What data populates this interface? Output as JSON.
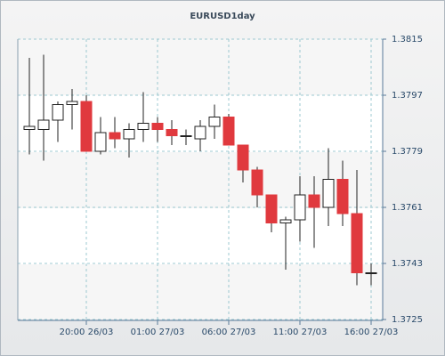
{
  "chart_data": {
    "type": "candlestick",
    "title": "EURUSD1day",
    "categories": [
      null,
      null,
      null,
      null,
      "20:00 26/03",
      null,
      null,
      null,
      null,
      "01:00 27/03",
      null,
      null,
      null,
      null,
      "06:00 27/03",
      null,
      null,
      null,
      null,
      "11:00 27/03",
      null,
      null,
      null,
      null,
      "16:00 27/03"
    ],
    "open": [
      1.3786,
      1.3786,
      1.3789,
      1.3794,
      1.3795,
      1.3779,
      1.3785,
      1.3783,
      1.3786,
      1.3788,
      1.3786,
      1.3784,
      1.3783,
      1.3787,
      1.379,
      1.3781,
      1.3773,
      1.3765,
      1.3756,
      1.3757,
      1.3765,
      1.3761,
      1.377,
      1.3759,
      1.374
    ],
    "high": [
      1.3809,
      1.381,
      1.3795,
      1.3799,
      1.3797,
      1.379,
      1.379,
      1.3788,
      1.3798,
      1.379,
      1.3789,
      1.3786,
      1.3789,
      1.3794,
      1.3791,
      1.3781,
      1.3774,
      1.3765,
      1.3758,
      1.3771,
      1.3771,
      1.378,
      1.3776,
      1.3773,
      1.3743
    ],
    "low": [
      1.3778,
      1.3776,
      1.3782,
      1.3786,
      1.3779,
      1.3778,
      1.378,
      1.3777,
      1.3782,
      1.3782,
      1.3781,
      1.3781,
      1.3779,
      1.3783,
      1.3781,
      1.3769,
      1.3761,
      1.3753,
      1.3741,
      1.375,
      1.3748,
      1.3755,
      1.3755,
      1.3736,
      1.3736
    ],
    "close": [
      1.3787,
      1.3789,
      1.3794,
      1.3795,
      1.3779,
      1.3785,
      1.3783,
      1.3786,
      1.3788,
      1.3786,
      1.3784,
      1.3784,
      1.3787,
      1.379,
      1.3781,
      1.3773,
      1.3765,
      1.3756,
      1.3757,
      1.3765,
      1.3761,
      1.377,
      1.3759,
      1.374,
      1.374
    ],
    "up_color": "#ffffff",
    "down_color": "#e0393e",
    "ylim": [
      1.3725,
      1.3815
    ],
    "yticks": [
      1.3725,
      1.3743,
      1.3761,
      1.3779,
      1.3797,
      1.3815
    ],
    "grid": true
  }
}
